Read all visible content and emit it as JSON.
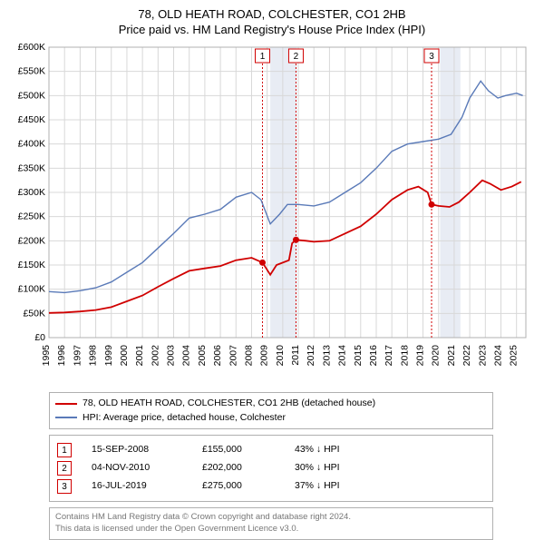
{
  "title": {
    "line1": "78, OLD HEATH ROAD, COLCHESTER, CO1 2HB",
    "line2": "Price paid vs. HM Land Registry's House Price Index (HPI)"
  },
  "chart": {
    "type": "line",
    "background_color": "#ffffff",
    "grid_color": "#d8d8d8",
    "border_color": "#b0b0b0",
    "shaded_band_color": "#e8ecf4",
    "shaded_bands": [
      {
        "x_start": 2009.2,
        "x_end": 2010.9
      },
      {
        "x_start": 2020.1,
        "x_end": 2021.4
      }
    ],
    "marker_box_color": "#d00000",
    "x": {
      "min": 1995,
      "max": 2025.6,
      "years": [
        1995,
        1996,
        1997,
        1998,
        1999,
        2000,
        2001,
        2002,
        2003,
        2004,
        2005,
        2006,
        2007,
        2008,
        2009,
        2010,
        2011,
        2012,
        2013,
        2014,
        2015,
        2016,
        2017,
        2018,
        2019,
        2020,
        2021,
        2022,
        2023,
        2024,
        2025
      ]
    },
    "y": {
      "min": 0,
      "max": 600000,
      "step": 50000,
      "prefix": "£",
      "suffix": "K",
      "ticks": [
        0,
        50000,
        100000,
        150000,
        200000,
        250000,
        300000,
        350000,
        400000,
        450000,
        500000,
        550000,
        600000
      ]
    },
    "series": [
      {
        "name": "78, OLD HEATH ROAD, COLCHESTER, CO1 2HB (detached house)",
        "color": "#d00000",
        "line_width": 1.8,
        "data": [
          [
            1995,
            51000
          ],
          [
            1996,
            52000
          ],
          [
            1997,
            54000
          ],
          [
            1998,
            57000
          ],
          [
            1999,
            63000
          ],
          [
            2000,
            75000
          ],
          [
            2001,
            87000
          ],
          [
            2002,
            105000
          ],
          [
            2003,
            122000
          ],
          [
            2004,
            138000
          ],
          [
            2005,
            143000
          ],
          [
            2006,
            148000
          ],
          [
            2007,
            160000
          ],
          [
            2008,
            165000
          ],
          [
            2008.7,
            155000
          ],
          [
            2009.2,
            130000
          ],
          [
            2009.6,
            150000
          ],
          [
            2010.4,
            160000
          ],
          [
            2010.6,
            195000
          ],
          [
            2010.85,
            202000
          ],
          [
            2011.5,
            200000
          ],
          [
            2012,
            198000
          ],
          [
            2013,
            200000
          ],
          [
            2014,
            215000
          ],
          [
            2015,
            230000
          ],
          [
            2016,
            255000
          ],
          [
            2017,
            285000
          ],
          [
            2018,
            305000
          ],
          [
            2018.7,
            312000
          ],
          [
            2019.3,
            300000
          ],
          [
            2019.55,
            275000
          ],
          [
            2020,
            272000
          ],
          [
            2020.7,
            270000
          ],
          [
            2021.3,
            280000
          ],
          [
            2022,
            300000
          ],
          [
            2022.8,
            325000
          ],
          [
            2023.3,
            318000
          ],
          [
            2024,
            305000
          ],
          [
            2024.7,
            312000
          ],
          [
            2025.3,
            322000
          ]
        ],
        "markers": [
          {
            "n": 1,
            "x": 2008.7,
            "y": 155000
          },
          {
            "n": 2,
            "x": 2010.85,
            "y": 202000
          },
          {
            "n": 3,
            "x": 2019.55,
            "y": 275000
          }
        ]
      },
      {
        "name": "HPI: Average price, detached house, Colchester",
        "color": "#5a7ab8",
        "line_width": 1.4,
        "data": [
          [
            1995,
            95000
          ],
          [
            1996,
            93000
          ],
          [
            1997,
            97000
          ],
          [
            1998,
            103000
          ],
          [
            1999,
            115000
          ],
          [
            2000,
            135000
          ],
          [
            2001,
            155000
          ],
          [
            2002,
            185000
          ],
          [
            2003,
            215000
          ],
          [
            2004,
            247000
          ],
          [
            2005,
            255000
          ],
          [
            2006,
            265000
          ],
          [
            2007,
            290000
          ],
          [
            2008,
            300000
          ],
          [
            2008.6,
            285000
          ],
          [
            2009.2,
            235000
          ],
          [
            2009.8,
            255000
          ],
          [
            2010.3,
            275000
          ],
          [
            2011,
            275000
          ],
          [
            2012,
            272000
          ],
          [
            2013,
            280000
          ],
          [
            2014,
            300000
          ],
          [
            2015,
            320000
          ],
          [
            2016,
            350000
          ],
          [
            2017,
            385000
          ],
          [
            2018,
            400000
          ],
          [
            2019,
            405000
          ],
          [
            2020,
            410000
          ],
          [
            2020.8,
            420000
          ],
          [
            2021.5,
            455000
          ],
          [
            2022,
            495000
          ],
          [
            2022.7,
            530000
          ],
          [
            2023.2,
            510000
          ],
          [
            2023.8,
            495000
          ],
          [
            2024.3,
            500000
          ],
          [
            2025,
            505000
          ],
          [
            2025.4,
            500000
          ]
        ]
      }
    ]
  },
  "legend": {
    "row1_label": "78, OLD HEATH ROAD, COLCHESTER, CO1 2HB (detached house)",
    "row1_color": "#d00000",
    "row2_label": "HPI: Average price, detached house, Colchester",
    "row2_color": "#5a7ab8"
  },
  "events": [
    {
      "n": "1",
      "date": "15-SEP-2008",
      "price": "£155,000",
      "diff": "43% ↓ HPI"
    },
    {
      "n": "2",
      "date": "04-NOV-2010",
      "price": "£202,000",
      "diff": "30% ↓ HPI"
    },
    {
      "n": "3",
      "date": "16-JUL-2019",
      "price": "£275,000",
      "diff": "37% ↓ HPI"
    }
  ],
  "footnote": {
    "line1": "Contains HM Land Registry data © Crown copyright and database right 2024.",
    "line2": "This data is licensed under the Open Government Licence v3.0."
  }
}
